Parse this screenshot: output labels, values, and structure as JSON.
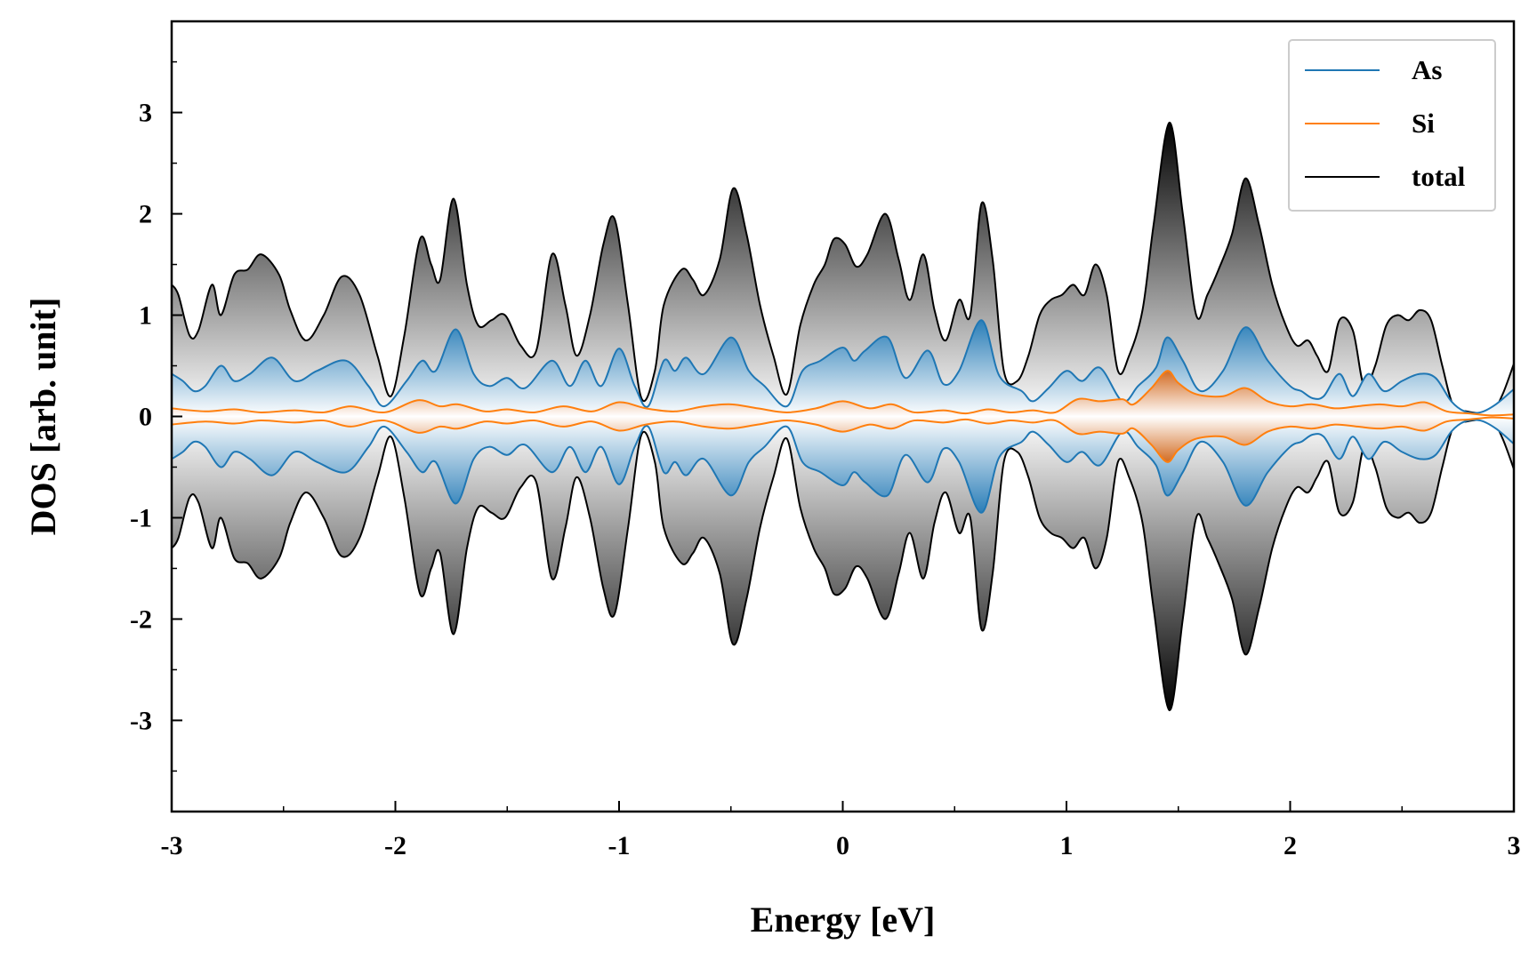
{
  "chart_data": {
    "type": "line",
    "xlabel": "Energy [eV]",
    "ylabel": "DOS [arb. unit]",
    "xlim": [
      -3,
      3
    ],
    "ylim": [
      -3.9,
      3.9
    ],
    "x_ticks": [
      "-3",
      "-2",
      "-1",
      "0",
      "1",
      "2",
      "3"
    ],
    "y_ticks": [
      "-3",
      "-2",
      "-1",
      "0",
      "1",
      "2",
      "3"
    ],
    "grid": false,
    "legend_position": "top-right",
    "mirrored": true,
    "series": [
      {
        "name": "As",
        "color": "#1f77b4",
        "fill": "#1f77b4",
        "x": [
          -3.0,
          -2.95,
          -2.9,
          -2.85,
          -2.78,
          -2.72,
          -2.65,
          -2.55,
          -2.45,
          -2.35,
          -2.22,
          -2.12,
          -2.05,
          -1.95,
          -1.88,
          -1.82,
          -1.73,
          -1.65,
          -1.58,
          -1.5,
          -1.42,
          -1.3,
          -1.22,
          -1.15,
          -1.08,
          -1.0,
          -0.93,
          -0.87,
          -0.8,
          -0.75,
          -0.7,
          -0.62,
          -0.5,
          -0.42,
          -0.35,
          -0.25,
          -0.18,
          -0.1,
          0.0,
          0.05,
          0.1,
          0.2,
          0.28,
          0.38,
          0.45,
          0.52,
          0.62,
          0.7,
          0.8,
          0.85,
          0.92,
          1.0,
          1.07,
          1.15,
          1.25,
          1.32,
          1.4,
          1.45,
          1.52,
          1.6,
          1.7,
          1.8,
          1.9,
          2.0,
          2.05,
          2.1,
          2.15,
          2.22,
          2.28,
          2.35,
          2.42,
          2.5,
          2.58,
          2.65,
          2.72,
          2.78,
          2.85,
          2.92,
          3.0
        ],
        "values": [
          0.42,
          0.35,
          0.25,
          0.3,
          0.5,
          0.35,
          0.42,
          0.58,
          0.35,
          0.45,
          0.55,
          0.3,
          0.1,
          0.35,
          0.55,
          0.45,
          0.86,
          0.42,
          0.3,
          0.38,
          0.28,
          0.55,
          0.3,
          0.55,
          0.3,
          0.67,
          0.3,
          0.1,
          0.55,
          0.45,
          0.58,
          0.42,
          0.78,
          0.45,
          0.3,
          0.1,
          0.45,
          0.55,
          0.68,
          0.55,
          0.65,
          0.78,
          0.38,
          0.65,
          0.32,
          0.45,
          0.95,
          0.4,
          0.25,
          0.15,
          0.28,
          0.45,
          0.35,
          0.48,
          0.15,
          0.3,
          0.48,
          0.78,
          0.55,
          0.25,
          0.45,
          0.88,
          0.55,
          0.3,
          0.25,
          0.18,
          0.2,
          0.42,
          0.2,
          0.42,
          0.25,
          0.35,
          0.42,
          0.38,
          0.15,
          0.05,
          0.04,
          0.12,
          0.27
        ]
      },
      {
        "name": "Si",
        "color": "#ff7f0e",
        "fill": "#d2691e",
        "x": [
          -3.0,
          -2.85,
          -2.72,
          -2.6,
          -2.45,
          -2.32,
          -2.2,
          -2.05,
          -1.9,
          -1.8,
          -1.72,
          -1.6,
          -1.5,
          -1.38,
          -1.25,
          -1.12,
          -1.0,
          -0.88,
          -0.75,
          -0.62,
          -0.5,
          -0.38,
          -0.25,
          -0.12,
          0.0,
          0.12,
          0.22,
          0.32,
          0.45,
          0.55,
          0.65,
          0.75,
          0.85,
          0.95,
          1.05,
          1.15,
          1.25,
          1.3,
          1.38,
          1.45,
          1.5,
          1.58,
          1.7,
          1.8,
          1.9,
          2.0,
          2.1,
          2.2,
          2.3,
          2.4,
          2.5,
          2.6,
          2.7,
          2.8,
          2.9,
          3.0
        ],
        "values": [
          0.08,
          0.05,
          0.07,
          0.04,
          0.06,
          0.04,
          0.1,
          0.04,
          0.16,
          0.1,
          0.12,
          0.05,
          0.07,
          0.04,
          0.1,
          0.05,
          0.14,
          0.08,
          0.05,
          0.1,
          0.12,
          0.08,
          0.04,
          0.08,
          0.15,
          0.08,
          0.12,
          0.04,
          0.06,
          0.03,
          0.07,
          0.04,
          0.06,
          0.04,
          0.17,
          0.15,
          0.17,
          0.12,
          0.28,
          0.45,
          0.33,
          0.22,
          0.2,
          0.28,
          0.15,
          0.1,
          0.12,
          0.08,
          0.1,
          0.12,
          0.1,
          0.14,
          0.05,
          0.03,
          0.01,
          0.02
        ]
      },
      {
        "name": "total",
        "color": "#000000",
        "fill": "#000000",
        "x": [
          -3.0,
          -2.97,
          -2.92,
          -2.88,
          -2.82,
          -2.78,
          -2.72,
          -2.66,
          -2.6,
          -2.52,
          -2.47,
          -2.4,
          -2.32,
          -2.24,
          -2.16,
          -2.08,
          -2.02,
          -1.96,
          -1.89,
          -1.84,
          -1.8,
          -1.74,
          -1.68,
          -1.63,
          -1.57,
          -1.51,
          -1.44,
          -1.37,
          -1.3,
          -1.24,
          -1.19,
          -1.13,
          -1.07,
          -1.02,
          -0.96,
          -0.9,
          -0.84,
          -0.8,
          -0.72,
          -0.67,
          -0.62,
          -0.55,
          -0.49,
          -0.43,
          -0.37,
          -0.31,
          -0.25,
          -0.19,
          -0.13,
          -0.08,
          -0.04,
          0.01,
          0.06,
          0.11,
          0.19,
          0.25,
          0.3,
          0.36,
          0.41,
          0.46,
          0.52,
          0.57,
          0.62,
          0.67,
          0.72,
          0.78,
          0.83,
          0.88,
          0.93,
          0.98,
          1.03,
          1.08,
          1.13,
          1.18,
          1.23,
          1.28,
          1.34,
          1.39,
          1.46,
          1.52,
          1.58,
          1.63,
          1.68,
          1.74,
          1.8,
          1.86,
          1.92,
          1.98,
          2.03,
          2.08,
          2.12,
          2.17,
          2.22,
          2.28,
          2.33,
          2.38,
          2.43,
          2.48,
          2.53,
          2.58,
          2.63,
          2.68,
          2.73,
          2.79,
          2.85,
          2.9,
          2.95,
          3.0
        ],
        "values": [
          1.3,
          1.2,
          0.8,
          0.85,
          1.3,
          1.0,
          1.4,
          1.45,
          1.6,
          1.4,
          1.05,
          0.75,
          1.0,
          1.38,
          1.2,
          0.6,
          0.2,
          0.8,
          1.75,
          1.5,
          1.35,
          2.15,
          1.3,
          0.9,
          0.95,
          1.0,
          0.7,
          0.65,
          1.6,
          1.1,
          0.6,
          1.0,
          1.7,
          1.95,
          1.1,
          0.18,
          0.45,
          1.1,
          1.45,
          1.35,
          1.2,
          1.55,
          2.25,
          1.8,
          1.1,
          0.6,
          0.22,
          0.9,
          1.3,
          1.5,
          1.75,
          1.7,
          1.48,
          1.6,
          2.0,
          1.55,
          1.15,
          1.6,
          1.05,
          0.75,
          1.15,
          1.0,
          2.1,
          1.55,
          0.45,
          0.35,
          0.6,
          1.0,
          1.15,
          1.2,
          1.3,
          1.2,
          1.5,
          1.2,
          0.45,
          0.6,
          1.05,
          1.9,
          2.9,
          2.0,
          1.0,
          1.2,
          1.45,
          1.8,
          2.35,
          1.9,
          1.3,
          0.9,
          0.7,
          0.75,
          0.6,
          0.45,
          0.95,
          0.85,
          0.3,
          0.5,
          0.9,
          1.0,
          0.95,
          1.05,
          0.95,
          0.5,
          0.1,
          0.05,
          0.03,
          0.02,
          0.22,
          0.52
        ]
      }
    ]
  }
}
